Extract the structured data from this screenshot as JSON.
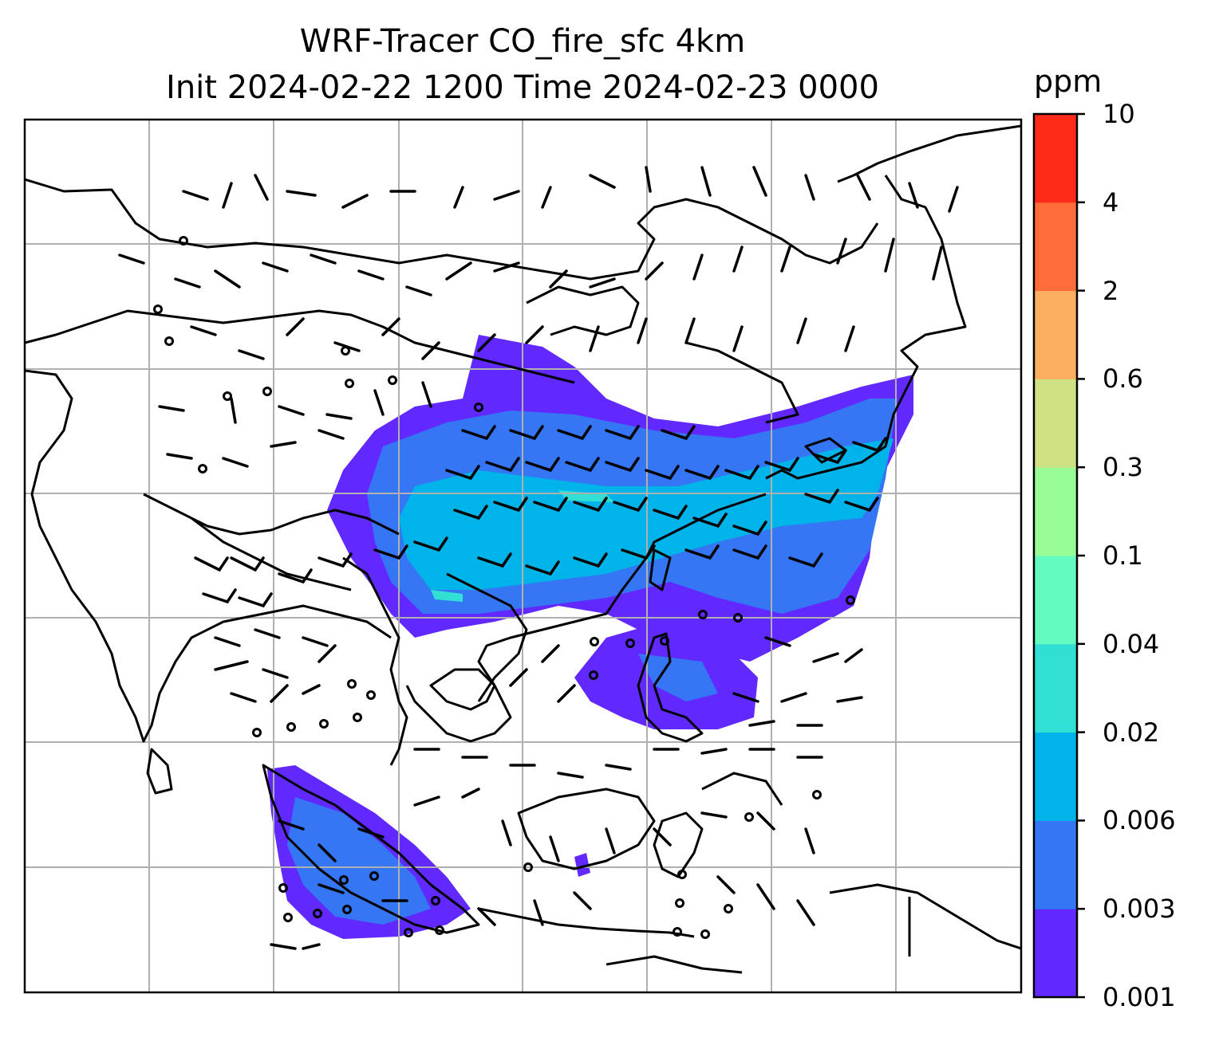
{
  "title": {
    "line1": "WRF-Tracer CO_fire_sfc 4km",
    "line2": "Init 2024-02-22 1200 Time 2024-02-23 0000"
  },
  "map": {
    "variable": "CO_fire_sfc",
    "resolution": "4km",
    "gridlines": true,
    "features": [
      "coastlines",
      "country-borders",
      "wind-barbs",
      "calm-wind-circles",
      "filled-contours"
    ],
    "gridline_color": "#b0b0b0"
  },
  "colorbar": {
    "unit": "ppm",
    "ticks": [
      "0.001",
      "0.003",
      "0.006",
      "0.02",
      "0.04",
      "0.1",
      "0.3",
      "0.6",
      "2",
      "4",
      "10"
    ],
    "colors": [
      "#6229ff",
      "#3476f4",
      "#00b4ea",
      "#31dfd5",
      "#64fbc0",
      "#98fc97",
      "#cfe283",
      "#fdae61",
      "#ff6d3a",
      "#ff2a18"
    ]
  }
}
